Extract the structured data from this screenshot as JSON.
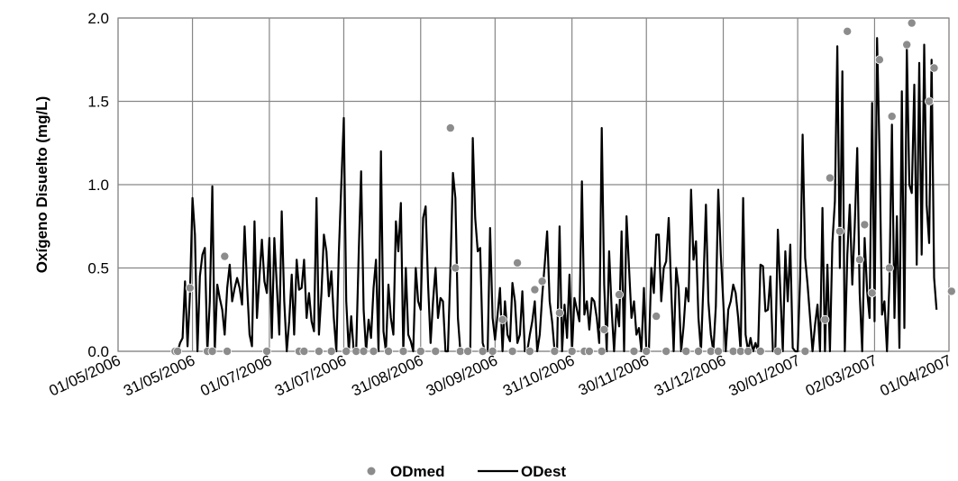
{
  "chart_data": {
    "type": "line",
    "ylabel": "Oxígeno Disuelto (mg/L)",
    "xlabel": "",
    "ylim": [
      0,
      2.0
    ],
    "xlim": [
      "2006-05-01",
      "2007-04-01"
    ],
    "y_ticks": [
      {
        "value": 0,
        "label": "0.0"
      },
      {
        "value": 0.5,
        "label": "0.5"
      },
      {
        "value": 1.0,
        "label": "1.0"
      },
      {
        "value": 1.5,
        "label": "1.5"
      },
      {
        "value": 2.0,
        "label": "2.0"
      }
    ],
    "x_ticks": [
      {
        "date": "2006-05-01",
        "label": "01/05/2006"
      },
      {
        "date": "2006-05-31",
        "label": "31/05/2006"
      },
      {
        "date": "2006-07-01",
        "label": "01/07/2006"
      },
      {
        "date": "2006-07-31",
        "label": "31/07/2006"
      },
      {
        "date": "2006-08-31",
        "label": "31/08/2006"
      },
      {
        "date": "2006-09-30",
        "label": "30/09/2006"
      },
      {
        "date": "2006-10-31",
        "label": "31/10/2006"
      },
      {
        "date": "2006-11-30",
        "label": "30/11/2006"
      },
      {
        "date": "2006-12-31",
        "label": "31/12/2006"
      },
      {
        "date": "2007-01-30",
        "label": "30/01/2007"
      },
      {
        "date": "2007-03-02",
        "label": "02/03/2007"
      },
      {
        "date": "2007-04-01",
        "label": "01/04/2007"
      }
    ],
    "grid": true,
    "legend_position": "bottom-center",
    "series": [
      {
        "name": "ODmed",
        "kind": "scatter",
        "color": "#8c8c8c",
        "points": [
          [
            "2006-05-24",
            0.0
          ],
          [
            "2006-05-25",
            0.0
          ],
          [
            "2006-05-30",
            0.38
          ],
          [
            "2006-06-06",
            0.0
          ],
          [
            "2006-06-08",
            0.0
          ],
          [
            "2006-06-13",
            0.57
          ],
          [
            "2006-06-14",
            0.0
          ],
          [
            "2006-06-30",
            0.0
          ],
          [
            "2006-07-13",
            0.0
          ],
          [
            "2006-07-15",
            0.0
          ],
          [
            "2006-07-21",
            0.0
          ],
          [
            "2006-07-26",
            0.0
          ],
          [
            "2006-08-01",
            0.0
          ],
          [
            "2006-08-05",
            0.0
          ],
          [
            "2006-08-08",
            0.0
          ],
          [
            "2006-08-12",
            0.0
          ],
          [
            "2006-08-18",
            0.0
          ],
          [
            "2006-08-24",
            0.0
          ],
          [
            "2006-08-31",
            0.0
          ],
          [
            "2006-09-06",
            0.0
          ],
          [
            "2006-09-12",
            1.34
          ],
          [
            "2006-09-14",
            0.5
          ],
          [
            "2006-09-16",
            0.0
          ],
          [
            "2006-09-19",
            0.0
          ],
          [
            "2006-09-25",
            0.0
          ],
          [
            "2006-09-29",
            0.0
          ],
          [
            "2006-10-03",
            0.19
          ],
          [
            "2006-10-07",
            0.0
          ],
          [
            "2006-10-09",
            0.53
          ],
          [
            "2006-10-14",
            0.0
          ],
          [
            "2006-10-16",
            0.37
          ],
          [
            "2006-10-19",
            0.42
          ],
          [
            "2006-10-24",
            0.0
          ],
          [
            "2006-10-26",
            0.23
          ],
          [
            "2006-10-31",
            0.0
          ],
          [
            "2006-11-05",
            0.0
          ],
          [
            "2006-11-07",
            0.0
          ],
          [
            "2006-11-12",
            0.0
          ],
          [
            "2006-11-13",
            0.13
          ],
          [
            "2006-11-19",
            0.34
          ],
          [
            "2006-11-25",
            0.0
          ],
          [
            "2006-11-30",
            0.0
          ],
          [
            "2006-12-04",
            0.21
          ],
          [
            "2006-12-08",
            0.0
          ],
          [
            "2006-12-16",
            0.0
          ],
          [
            "2006-12-21",
            0.0
          ],
          [
            "2006-12-26",
            0.0
          ],
          [
            "2006-12-29",
            0.0
          ],
          [
            "2007-01-04",
            0.0
          ],
          [
            "2007-01-07",
            0.0
          ],
          [
            "2007-01-10",
            0.0
          ],
          [
            "2007-01-15",
            0.0
          ],
          [
            "2007-01-22",
            0.0
          ],
          [
            "2007-02-02",
            0.0
          ],
          [
            "2007-02-10",
            0.19
          ],
          [
            "2007-02-12",
            1.04
          ],
          [
            "2007-02-16",
            0.72
          ],
          [
            "2007-02-19",
            1.92
          ],
          [
            "2007-02-24",
            0.55
          ],
          [
            "2007-02-26",
            0.76
          ],
          [
            "2007-03-01",
            0.35
          ],
          [
            "2007-03-04",
            1.75
          ],
          [
            "2007-03-08",
            0.5
          ],
          [
            "2007-03-09",
            1.41
          ],
          [
            "2007-03-15",
            1.84
          ],
          [
            "2007-03-17",
            1.97
          ],
          [
            "2007-03-24",
            1.5
          ],
          [
            "2007-03-26",
            1.7
          ],
          [
            "2007-04-02",
            0.36
          ]
        ]
      },
      {
        "name": "ODest",
        "kind": "line",
        "color": "#000000",
        "values_start_date": "2006-05-24",
        "values": [
          0.0,
          0.0,
          0.05,
          0.08,
          0.42,
          0.03,
          0.35,
          0.92,
          0.7,
          0.0,
          0.45,
          0.58,
          0.62,
          0.0,
          0.3,
          0.99,
          0.0,
          0.4,
          0.32,
          0.25,
          0.1,
          0.38,
          0.52,
          0.3,
          0.38,
          0.44,
          0.38,
          0.28,
          0.75,
          0.4,
          0.1,
          0.03,
          0.78,
          0.2,
          0.45,
          0.67,
          0.42,
          0.35,
          0.68,
          0.08,
          0.68,
          0.4,
          0.1,
          0.84,
          0.3,
          0.0,
          0.18,
          0.46,
          0.1,
          0.55,
          0.37,
          0.38,
          0.55,
          0.2,
          0.35,
          0.18,
          0.12,
          0.92,
          0.1,
          0.35,
          0.7,
          0.6,
          0.33,
          0.48,
          0.2,
          0.0,
          0.58,
          1.0,
          1.4,
          0.3,
          0.0,
          0.21,
          0.0,
          0.0,
          0.58,
          1.08,
          0.25,
          0.0,
          0.19,
          0.08,
          0.38,
          0.55,
          0.0,
          1.2,
          0.12,
          0.0,
          0.4,
          0.2,
          0.1,
          0.78,
          0.6,
          0.89,
          0.0,
          0.5,
          0.1,
          0.06,
          0.0,
          0.5,
          0.3,
          0.25,
          0.8,
          0.87,
          0.4,
          0.05,
          0.3,
          0.5,
          0.2,
          0.32,
          0.3,
          0.0,
          0.0,
          0.5,
          1.07,
          0.92,
          0.2,
          0.0,
          0.0,
          0.0,
          0.0,
          0.0,
          1.28,
          0.8,
          0.6,
          0.62,
          0.05,
          0.0,
          0.0,
          0.74,
          0.2,
          0.07,
          0.22,
          0.38,
          0.0,
          0.3,
          0.1,
          0.06,
          0.41,
          0.3,
          0.05,
          0.1,
          0.36,
          0.0,
          0.0,
          0.1,
          0.18,
          0.3,
          0.0,
          0.1,
          0.33,
          0.52,
          0.72,
          0.3,
          0.18,
          0.0,
          0.0,
          0.75,
          0.0,
          0.28,
          0.08,
          0.46,
          0.0,
          0.32,
          0.25,
          0.18,
          1.02,
          0.22,
          0.3,
          0.13,
          0.32,
          0.3,
          0.2,
          0.05,
          1.34,
          0.4,
          0.0,
          0.6,
          0.25,
          0.0,
          0.28,
          0.15,
          0.72,
          0.0,
          0.81,
          0.5,
          0.2,
          0.3,
          0.1,
          0.14,
          0.0,
          0.38,
          0.0,
          0.0,
          0.5,
          0.35,
          0.7,
          0.7,
          0.3,
          0.5,
          0.54,
          0.8,
          0.38,
          0.0,
          0.5,
          0.38,
          0.0,
          0.15,
          0.38,
          0.3,
          0.97,
          0.55,
          0.66,
          0.2,
          0.0,
          0.4,
          0.88,
          0.3,
          0.1,
          0.0,
          0.27,
          0.97,
          0.58,
          0.3,
          0.0,
          0.25,
          0.3,
          0.4,
          0.35,
          0.2,
          0.0,
          0.92,
          0.1,
          0.0,
          0.08,
          0.0,
          0.05,
          0.0,
          0.52,
          0.51,
          0.24,
          0.25,
          0.45,
          0.0,
          0.0,
          0.73,
          0.37,
          0.0,
          0.6,
          0.3,
          0.64,
          0.02,
          0.0,
          0.0,
          0.45,
          1.3,
          0.56,
          0.4,
          0.2,
          0.0,
          0.16,
          0.28,
          0.0,
          0.86,
          0.0,
          0.52,
          0.0,
          0.65,
          0.9,
          1.83,
          0.5,
          1.68,
          0.0,
          0.58,
          0.88,
          0.4,
          0.75,
          1.22,
          0.35,
          0.0,
          0.68,
          0.36,
          0.2,
          1.49,
          0.18,
          1.88,
          1.2,
          0.22,
          0.3,
          0.0,
          0.41,
          1.36,
          0.2,
          0.81,
          0.02,
          1.56,
          0.14,
          1.83,
          1.0,
          0.95,
          1.6,
          0.52,
          1.73,
          0.58,
          1.84,
          0.88,
          0.65,
          1.75,
          0.44,
          0.25
        ]
      }
    ]
  }
}
